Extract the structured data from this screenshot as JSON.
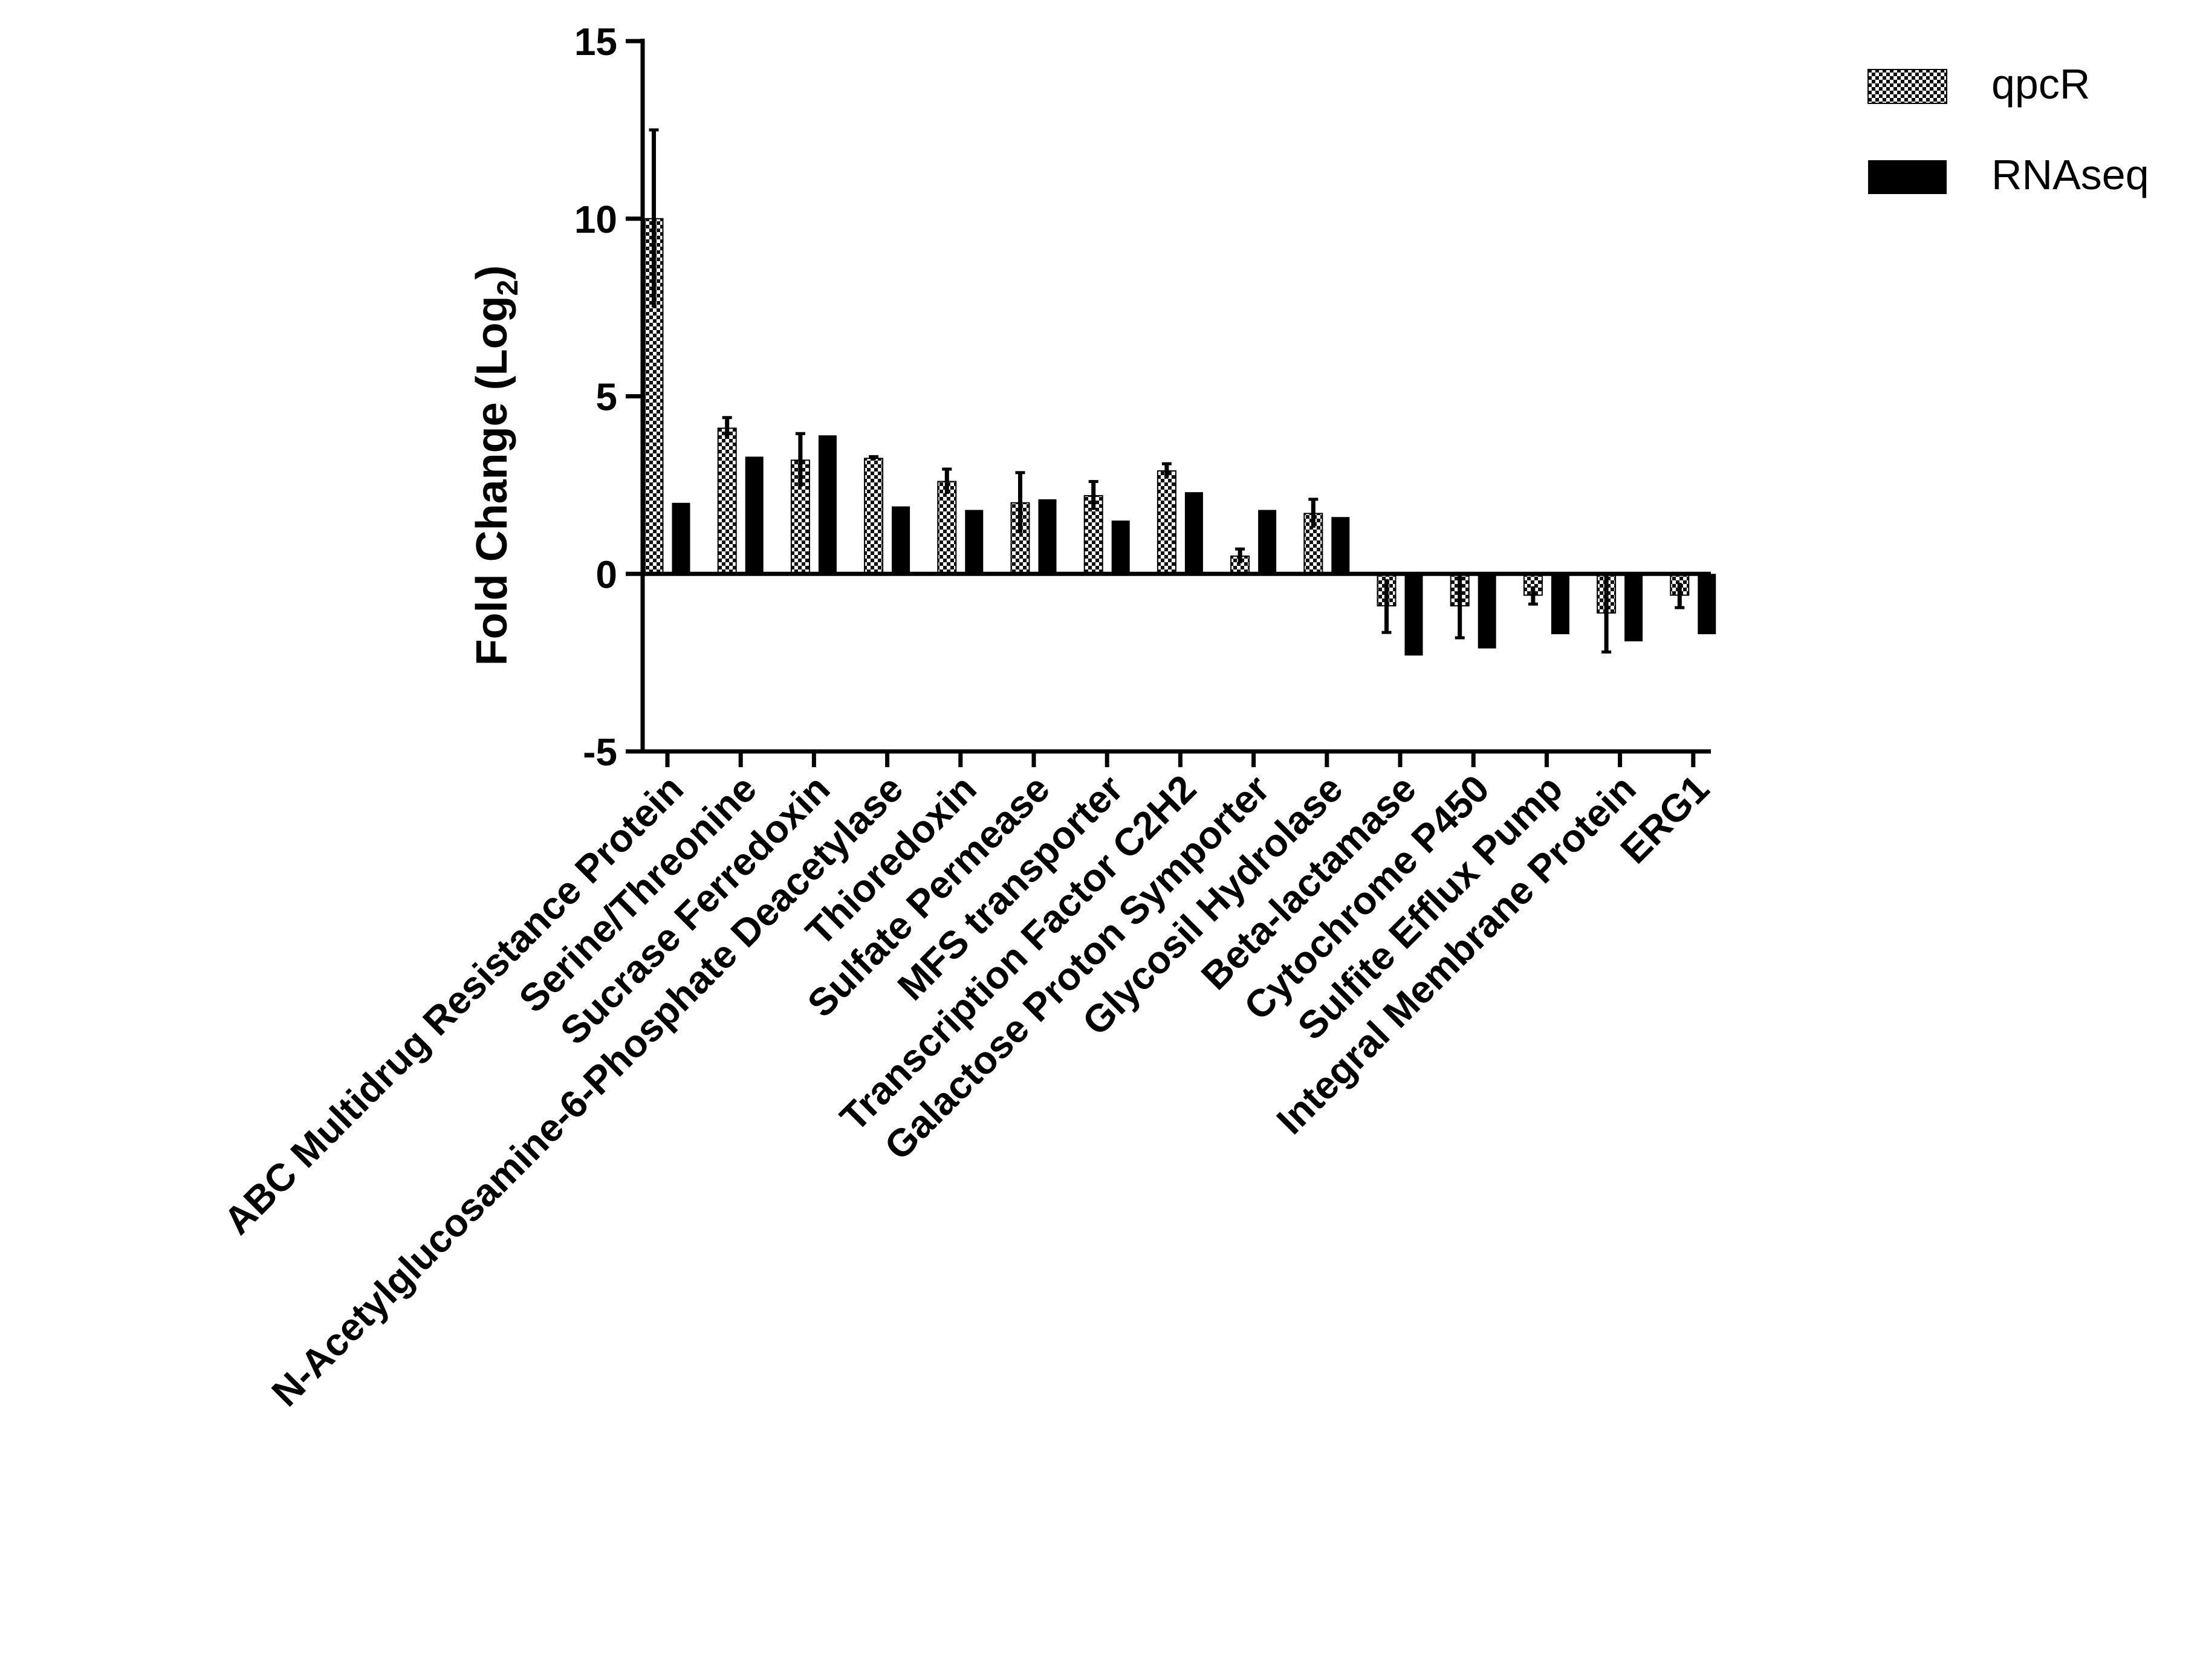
{
  "chart_data": {
    "type": "bar",
    "title": "",
    "xlabel": "",
    "ylabel": "Fold Change (Log",
    "ylabel_subscript": "2",
    "ylabel_close": ")",
    "ylim": [
      -5,
      15
    ],
    "yticks": [
      -5,
      0,
      5,
      10,
      15
    ],
    "ytick_labels": [
      "-5",
      "0",
      "5",
      "10",
      "15"
    ],
    "legend_position": "top-right",
    "categories": [
      "ABC Multidrug Resistance Protein",
      "Serine/Threonine",
      "Sucrase Ferredoxin",
      "N-Acetylglucosamine-6-Phosphate Deacetylase",
      "Thioredoxin",
      "Sulfate Permease",
      "MFS transporter",
      "Transcription Factor C2H2",
      "Galactose Proton Symporter",
      "Glycosil Hydrolase",
      "Beta-lactamase",
      "Cytochrome P450",
      "Sulfite Efflux Pump",
      "Integral Membrane Protein",
      "ERG1"
    ],
    "series": [
      {
        "name": "qpcR",
        "pattern": "checkerboard",
        "values": [
          10.0,
          4.1,
          3.2,
          3.25,
          2.6,
          2.0,
          2.2,
          2.9,
          0.5,
          1.7,
          -0.9,
          -0.9,
          -0.6,
          -1.1,
          -0.6
        ],
        "errors": [
          2.5,
          0.3,
          0.75,
          0.05,
          0.35,
          0.85,
          0.4,
          0.2,
          0.2,
          0.4,
          0.75,
          0.9,
          0.25,
          1.1,
          0.35
        ]
      },
      {
        "name": "RNAseq",
        "pattern": "solid",
        "values": [
          2.0,
          3.3,
          3.9,
          1.9,
          1.8,
          2.1,
          1.5,
          2.3,
          1.8,
          1.6,
          -2.3,
          -2.1,
          -1.7,
          -1.9,
          -1.7
        ]
      }
    ]
  },
  "colors": {
    "rnaseq_fill": "#000000",
    "axis": "#000000",
    "checker_dark": "#111111",
    "checker_light": "#ffffff"
  }
}
